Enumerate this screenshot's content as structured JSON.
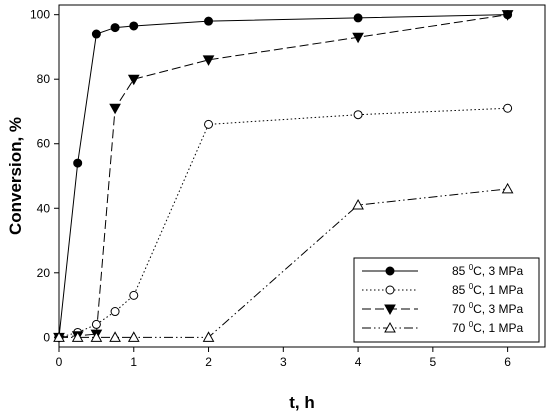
{
  "chart_data": {
    "type": "line",
    "xlabel": "t, h",
    "ylabel": "Conversion, %",
    "xlim": [
      0,
      6.5
    ],
    "ylim": [
      -3,
      103
    ],
    "xticks": [
      0,
      1,
      2,
      3,
      4,
      5,
      6
    ],
    "yticks": [
      0,
      20,
      40,
      60,
      80,
      100
    ],
    "grid": false,
    "legend_position": "bottom-right",
    "series": [
      {
        "name": "85 0C, 3 MPa",
        "name_parts": {
          "pre": "85 ",
          "sup": "0",
          "post": "C, 3 MPa"
        },
        "marker": "filled-circle",
        "line": "solid",
        "x": [
          0,
          0.25,
          0.5,
          0.75,
          1,
          2,
          4,
          6
        ],
        "y": [
          0,
          54,
          94,
          96,
          96.5,
          98,
          99,
          100
        ]
      },
      {
        "name": "85 0C, 1 MPa",
        "name_parts": {
          "pre": "85 ",
          "sup": "0",
          "post": "C, 1 MPa"
        },
        "marker": "open-circle",
        "line": "dotted",
        "x": [
          0,
          0.25,
          0.5,
          0.75,
          1,
          2,
          4,
          6
        ],
        "y": [
          0,
          1.5,
          4,
          8,
          13,
          66,
          69,
          71
        ]
      },
      {
        "name": "70 0C, 3 MPa",
        "name_parts": {
          "pre": "70 ",
          "sup": "0",
          "post": "C, 3 MPa"
        },
        "marker": "filled-triangle-down",
        "line": "dashed",
        "x": [
          0,
          0.25,
          0.5,
          0.75,
          1,
          2,
          4,
          6
        ],
        "y": [
          0,
          0.5,
          1,
          71,
          80,
          86,
          93,
          100
        ]
      },
      {
        "name": "70 0C, 1 MPa",
        "name_parts": {
          "pre": "70 ",
          "sup": "0",
          "post": "C, 1 MPa"
        },
        "marker": "open-triangle-up",
        "line": "dash-dot-dot",
        "x": [
          0,
          0.25,
          0.5,
          0.75,
          1,
          2,
          4,
          6
        ],
        "y": [
          0,
          0,
          0,
          0,
          0,
          0,
          41,
          46
        ]
      }
    ]
  }
}
